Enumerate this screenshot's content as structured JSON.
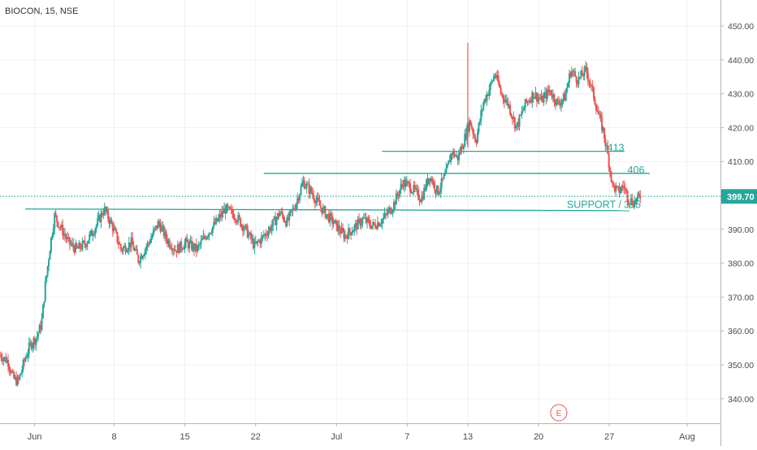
{
  "header": {
    "symbol_title": "BIOCON, 15, NSE"
  },
  "colors": {
    "up": "#26a69a",
    "down": "#ef5350",
    "line": "#26a69a",
    "grid": "#eef0f3",
    "axis": "#b2b5be",
    "text": "#4a4a4a",
    "price_tag_bg": "#26a69a",
    "price_tag_text": "#ffffff"
  },
  "chart_data": {
    "type": "candlestick",
    "title": "BIOCON, 15, NSE",
    "ylim": [
      333,
      455
    ],
    "y_ticks": [
      "450.00",
      "440.00",
      "430.00",
      "420.00",
      "410.00",
      "400.00",
      "390.00",
      "380.00",
      "370.00",
      "360.00",
      "350.00",
      "340.00"
    ],
    "y_tick_values": [
      450,
      440,
      430,
      420,
      410,
      400,
      390,
      380,
      370,
      360,
      350,
      340
    ],
    "x_ticks": [
      {
        "label": "Jun",
        "t": 0.13
      },
      {
        "label": "8",
        "t": 8.0
      },
      {
        "label": "15",
        "t": 15.0
      },
      {
        "label": "22",
        "t": 22.0
      },
      {
        "label": "Jul",
        "t": 30.0
      },
      {
        "label": "7",
        "t": 37.0
      },
      {
        "label": "13",
        "t": 43.0
      },
      {
        "label": "20",
        "t": 50.0
      },
      {
        "label": "27",
        "t": 57.0
      },
      {
        "label": "Aug",
        "t": 64.7
      }
    ],
    "x_range": [
      -3.3,
      68.0
    ],
    "current_price": "399.70",
    "current_price_value": 399.7,
    "horizontal_lines": [
      {
        "label": "413",
        "value": 413,
        "t_start": 34.5,
        "t_end": 58.5,
        "label_t": 56.8
      },
      {
        "label": "406",
        "value": 406.5,
        "t_start": 22.8,
        "t_end": 61.0,
        "label_t": 58.8
      },
      {
        "label": "SUPPORT / 395",
        "value": 396,
        "t_start": -0.8,
        "t_end": 59.0,
        "label_t": 52.8,
        "value2": 395.5
      }
    ],
    "event_marker": {
      "label": "E",
      "t": 52.0
    },
    "price_path": [
      {
        "t": -3.3,
        "v": 353
      },
      {
        "t": -2.5,
        "v": 351
      },
      {
        "t": -2.0,
        "v": 346
      },
      {
        "t": -1.5,
        "v": 345
      },
      {
        "t": -0.8,
        "v": 352
      },
      {
        "t": -0.3,
        "v": 356
      },
      {
        "t": 0.3,
        "v": 358
      },
      {
        "t": 0.8,
        "v": 362
      },
      {
        "t": 1.2,
        "v": 374
      },
      {
        "t": 1.7,
        "v": 386
      },
      {
        "t": 2.1,
        "v": 394
      },
      {
        "t": 2.8,
        "v": 390
      },
      {
        "t": 3.5,
        "v": 386
      },
      {
        "t": 4.3,
        "v": 384
      },
      {
        "t": 5.2,
        "v": 386
      },
      {
        "t": 6.2,
        "v": 391
      },
      {
        "t": 7.0,
        "v": 396
      },
      {
        "t": 7.8,
        "v": 391
      },
      {
        "t": 8.7,
        "v": 384
      },
      {
        "t": 9.7,
        "v": 386
      },
      {
        "t": 10.4,
        "v": 381
      },
      {
        "t": 11.4,
        "v": 386
      },
      {
        "t": 12.4,
        "v": 392
      },
      {
        "t": 13.2,
        "v": 387
      },
      {
        "t": 14.1,
        "v": 384
      },
      {
        "t": 15.1,
        "v": 386
      },
      {
        "t": 16.2,
        "v": 384
      },
      {
        "t": 17.0,
        "v": 388
      },
      {
        "t": 18.1,
        "v": 392
      },
      {
        "t": 19.0,
        "v": 396
      },
      {
        "t": 20.0,
        "v": 394
      },
      {
        "t": 21.0,
        "v": 390
      },
      {
        "t": 21.9,
        "v": 385
      },
      {
        "t": 22.8,
        "v": 388
      },
      {
        "t": 23.6,
        "v": 391
      },
      {
        "t": 24.4,
        "v": 395
      },
      {
        "t": 25.1,
        "v": 392
      },
      {
        "t": 25.9,
        "v": 397
      },
      {
        "t": 26.7,
        "v": 404
      },
      {
        "t": 27.5,
        "v": 401
      },
      {
        "t": 28.3,
        "v": 397
      },
      {
        "t": 29.1,
        "v": 394
      },
      {
        "t": 30.0,
        "v": 391
      },
      {
        "t": 30.8,
        "v": 388
      },
      {
        "t": 31.6,
        "v": 390
      },
      {
        "t": 32.6,
        "v": 393
      },
      {
        "t": 33.6,
        "v": 391
      },
      {
        "t": 34.6,
        "v": 393
      },
      {
        "t": 35.6,
        "v": 397
      },
      {
        "t": 36.6,
        "v": 404
      },
      {
        "t": 37.5,
        "v": 402
      },
      {
        "t": 38.4,
        "v": 399
      },
      {
        "t": 39.2,
        "v": 406
      },
      {
        "t": 40.0,
        "v": 401
      },
      {
        "t": 40.8,
        "v": 406
      },
      {
        "t": 41.4,
        "v": 413
      },
      {
        "t": 42.0,
        "v": 411
      },
      {
        "t": 42.6,
        "v": 416
      },
      {
        "t": 43.2,
        "v": 422
      },
      {
        "t": 43.8,
        "v": 416
      },
      {
        "t": 44.5,
        "v": 427
      },
      {
        "t": 45.2,
        "v": 432
      },
      {
        "t": 45.7,
        "v": 436
      },
      {
        "t": 46.3,
        "v": 430
      },
      {
        "t": 47.0,
        "v": 427
      },
      {
        "t": 47.8,
        "v": 420
      },
      {
        "t": 48.7,
        "v": 427
      },
      {
        "t": 49.5,
        "v": 430
      },
      {
        "t": 50.3,
        "v": 428
      },
      {
        "t": 51.1,
        "v": 431
      },
      {
        "t": 51.9,
        "v": 427
      },
      {
        "t": 52.6,
        "v": 429
      },
      {
        "t": 53.2,
        "v": 437
      },
      {
        "t": 53.9,
        "v": 434
      },
      {
        "t": 54.7,
        "v": 437
      },
      {
        "t": 55.4,
        "v": 430
      },
      {
        "t": 55.9,
        "v": 424
      },
      {
        "t": 56.4,
        "v": 419
      },
      {
        "t": 56.9,
        "v": 411
      },
      {
        "t": 57.3,
        "v": 403
      },
      {
        "t": 57.9,
        "v": 401
      },
      {
        "t": 58.4,
        "v": 403
      },
      {
        "t": 58.9,
        "v": 399
      },
      {
        "t": 59.4,
        "v": 398
      },
      {
        "t": 60.1,
        "v": 399.7
      }
    ]
  }
}
